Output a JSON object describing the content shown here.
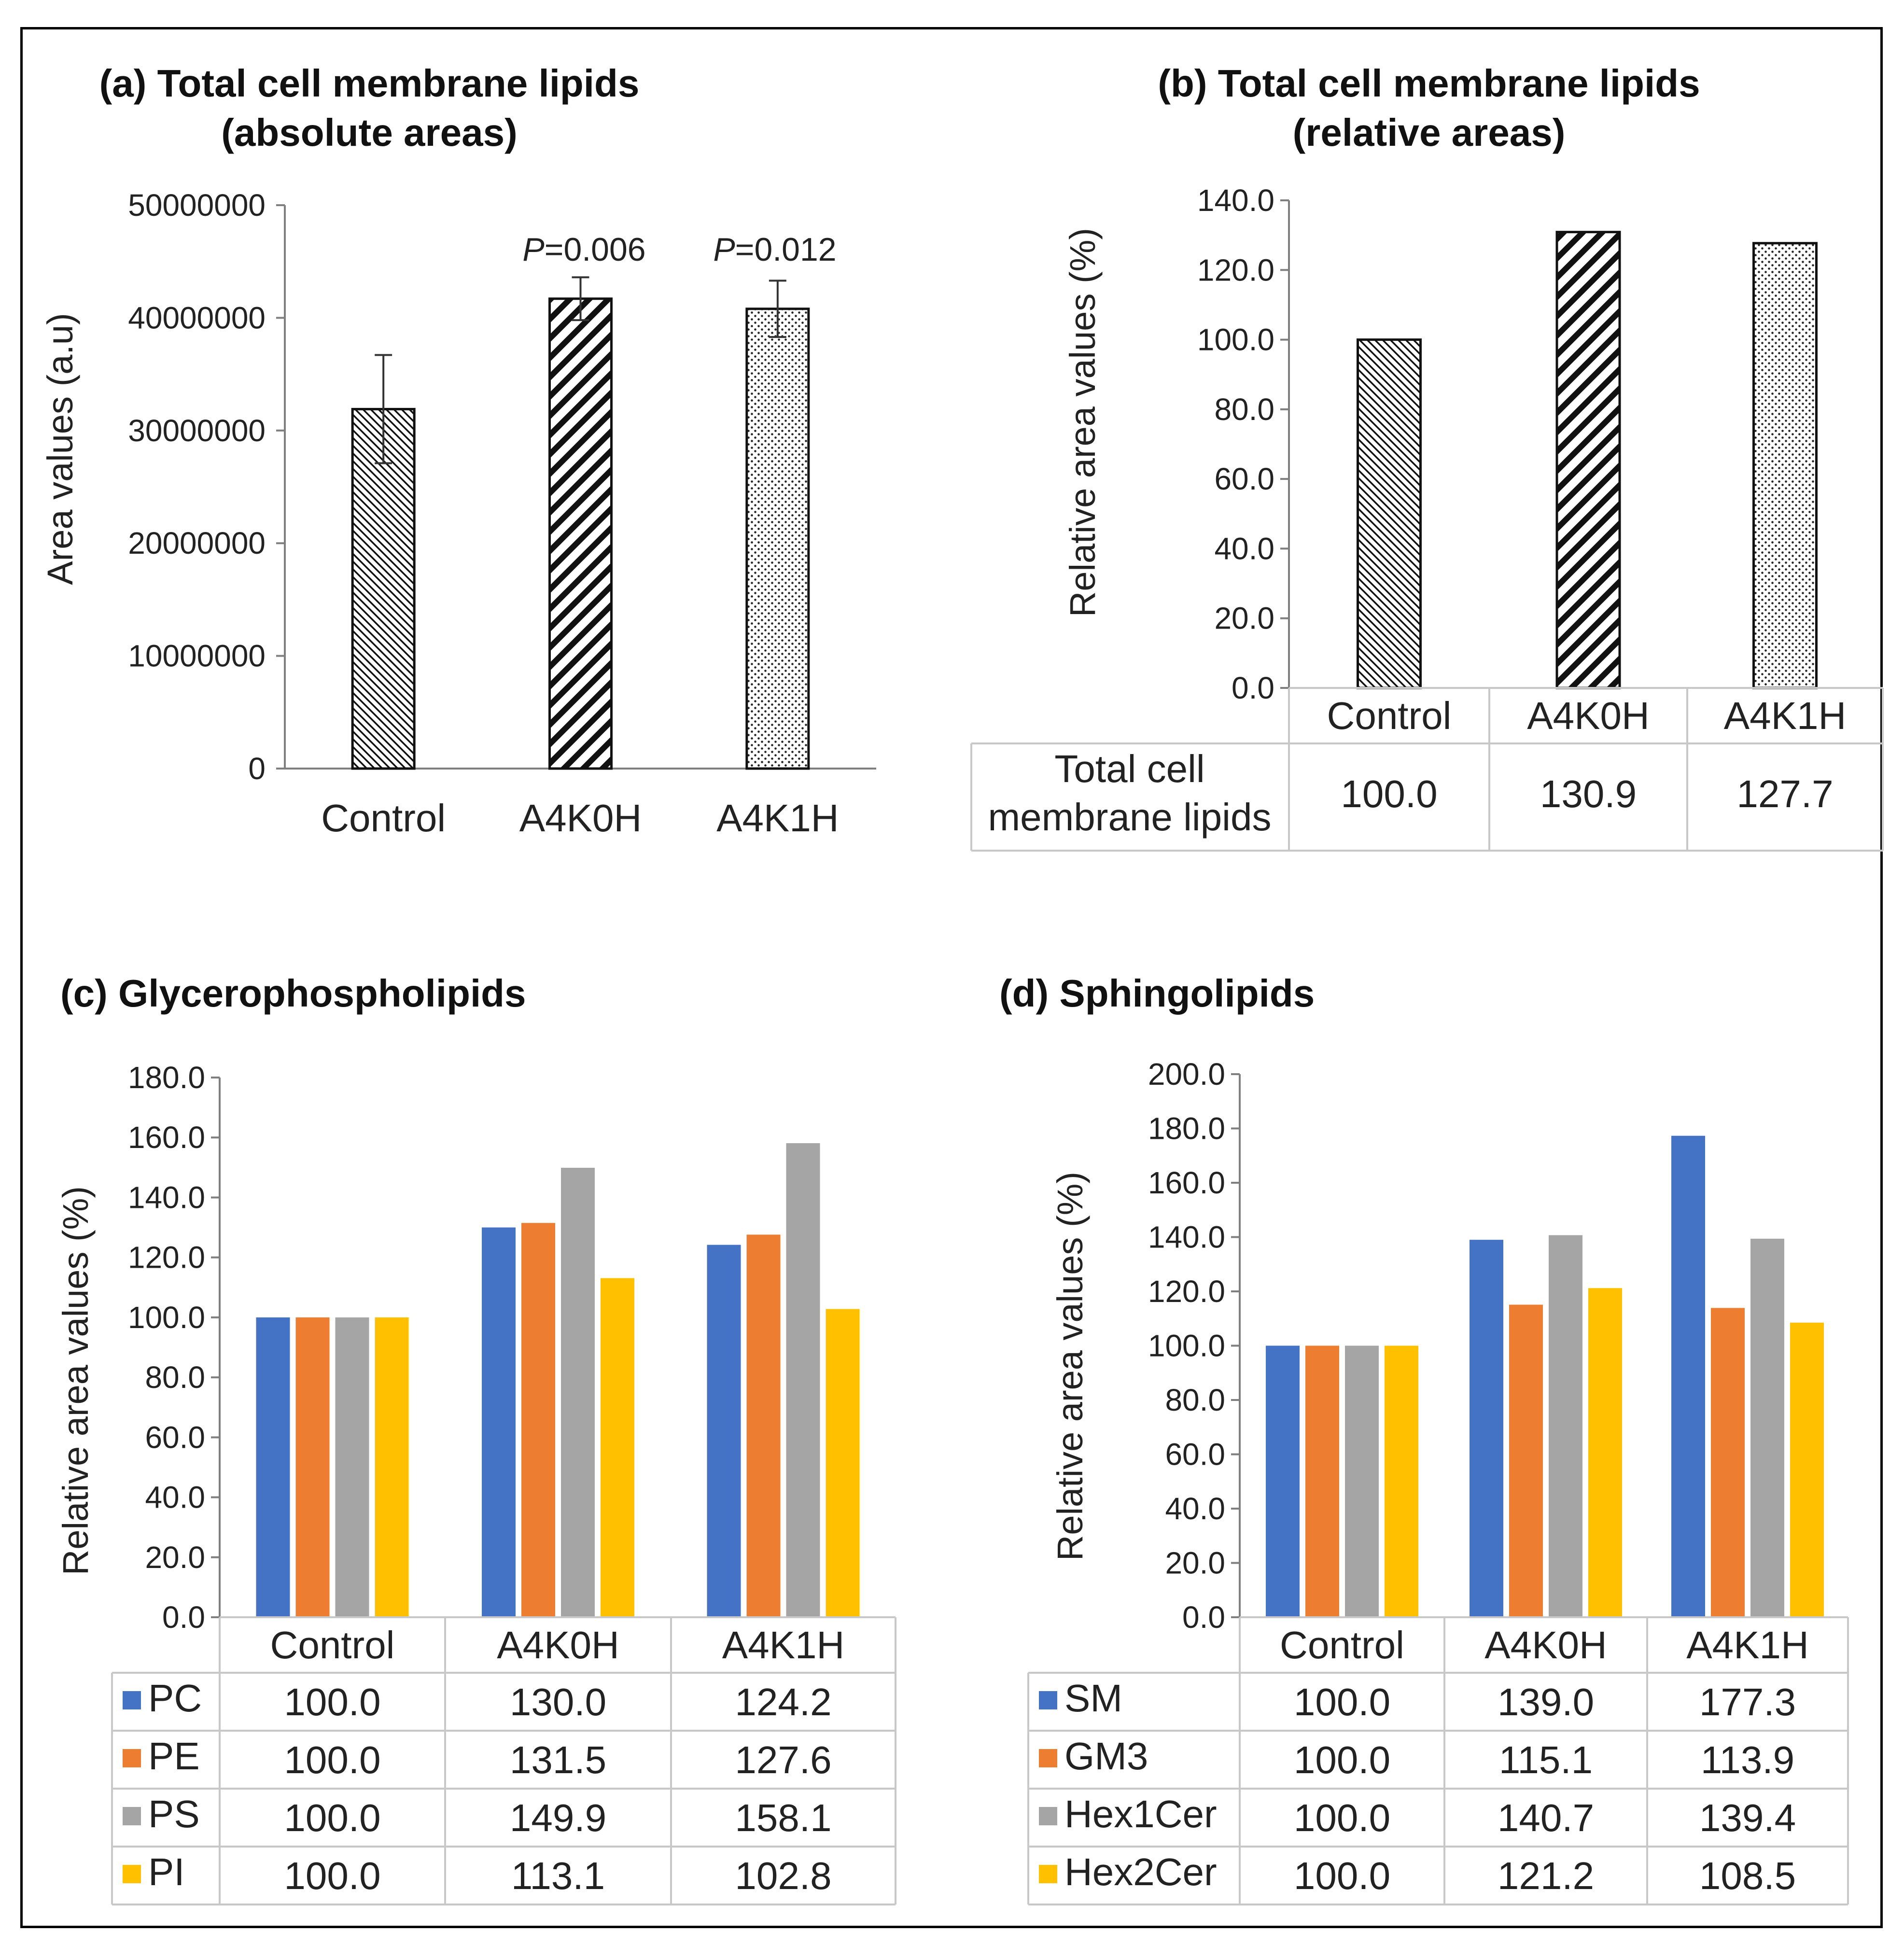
{
  "colors": {
    "PC": "#4472C4",
    "PE": "#ED7D31",
    "PS": "#A5A5A5",
    "PI": "#FFC000"
  },
  "chart_data": [
    {
      "id": "a",
      "type": "bar",
      "title_line1": "(a) Total cell membrane lipids",
      "title_line2": "(absolute areas)",
      "ylabel": "Area values (a.u)",
      "xlabel": "",
      "ylim": [
        0,
        50000000
      ],
      "yticks": [
        "0",
        "10000000",
        "20000000",
        "30000000",
        "40000000",
        "50000000"
      ],
      "categories": [
        "Control",
        "A4K0H",
        "A4K1H"
      ],
      "values": [
        31900000,
        41700000,
        40800000
      ],
      "errors": [
        4800000,
        1900000,
        2500000
      ],
      "annotations": [
        "",
        "=0.006",
        "=0.012"
      ],
      "annotation_italic": "P",
      "patterns": [
        "diag-thin",
        "diag-bold",
        "dots"
      ]
    },
    {
      "id": "b",
      "type": "bar",
      "title_line1": "(b) Total cell membrane lipids",
      "title_line2": "(relative areas)",
      "ylabel": "Relative area values (%)",
      "ylim": [
        0,
        140
      ],
      "yticks": [
        "0.0",
        "20.0",
        "40.0",
        "60.0",
        "80.0",
        "100.0",
        "120.0",
        "140.0"
      ],
      "categories": [
        "Control",
        "A4K0H",
        "A4K1H"
      ],
      "series": [
        {
          "name": "Total cell membrane lipids",
          "values": [
            100.0,
            130.9,
            127.7
          ]
        }
      ],
      "series_label_line1": "Total cell",
      "series_label_line2": "membrane lipids",
      "table_values": [
        "100.0",
        "130.9",
        "127.7"
      ],
      "patterns": [
        "diag-thin",
        "diag-bold",
        "dots"
      ]
    },
    {
      "id": "c",
      "type": "bar",
      "title": "(c) Glycerophospholipids",
      "ylabel": "Relative area values (%)",
      "ylim": [
        0,
        180
      ],
      "yticks": [
        "0.0",
        "20.0",
        "40.0",
        "60.0",
        "80.0",
        "100.0",
        "120.0",
        "140.0",
        "160.0",
        "180.0"
      ],
      "categories": [
        "Control",
        "A4K0H",
        "A4K1H"
      ],
      "series": [
        {
          "name": "PC",
          "values": [
            100.0,
            130.0,
            124.2
          ],
          "labels": [
            "100.0",
            "130.0",
            "124.2"
          ]
        },
        {
          "name": "PE",
          "values": [
            100.0,
            131.5,
            127.6
          ],
          "labels": [
            "100.0",
            "131.5",
            "127.6"
          ]
        },
        {
          "name": "PS",
          "values": [
            100.0,
            149.9,
            158.1
          ],
          "labels": [
            "100.0",
            "149.9",
            "158.1"
          ]
        },
        {
          "name": "PI",
          "values": [
            100.0,
            113.1,
            102.8
          ],
          "labels": [
            "100.0",
            "113.1",
            "102.8"
          ]
        }
      ]
    },
    {
      "id": "d",
      "type": "bar",
      "title": "(d) Sphingolipids",
      "ylabel": "Relative area values (%)",
      "ylim": [
        0,
        200
      ],
      "yticks": [
        "0.0",
        "20.0",
        "40.0",
        "60.0",
        "80.0",
        "100.0",
        "120.0",
        "140.0",
        "160.0",
        "180.0",
        "200.0"
      ],
      "categories": [
        "Control",
        "A4K0H",
        "A4K1H"
      ],
      "series": [
        {
          "name": "SM",
          "values": [
            100.0,
            139.0,
            177.3
          ],
          "labels": [
            "100.0",
            "139.0",
            "177.3"
          ]
        },
        {
          "name": "GM3",
          "values": [
            100.0,
            115.1,
            113.9
          ],
          "labels": [
            "100.0",
            "115.1",
            "113.9"
          ]
        },
        {
          "name": "Hex1Cer",
          "values": [
            100.0,
            140.7,
            139.4
          ],
          "labels": [
            "100.0",
            "140.7",
            "139.4"
          ]
        },
        {
          "name": "Hex2Cer",
          "values": [
            100.0,
            121.2,
            108.5
          ],
          "labels": [
            "100.0",
            "121.2",
            "108.5"
          ]
        }
      ]
    }
  ]
}
